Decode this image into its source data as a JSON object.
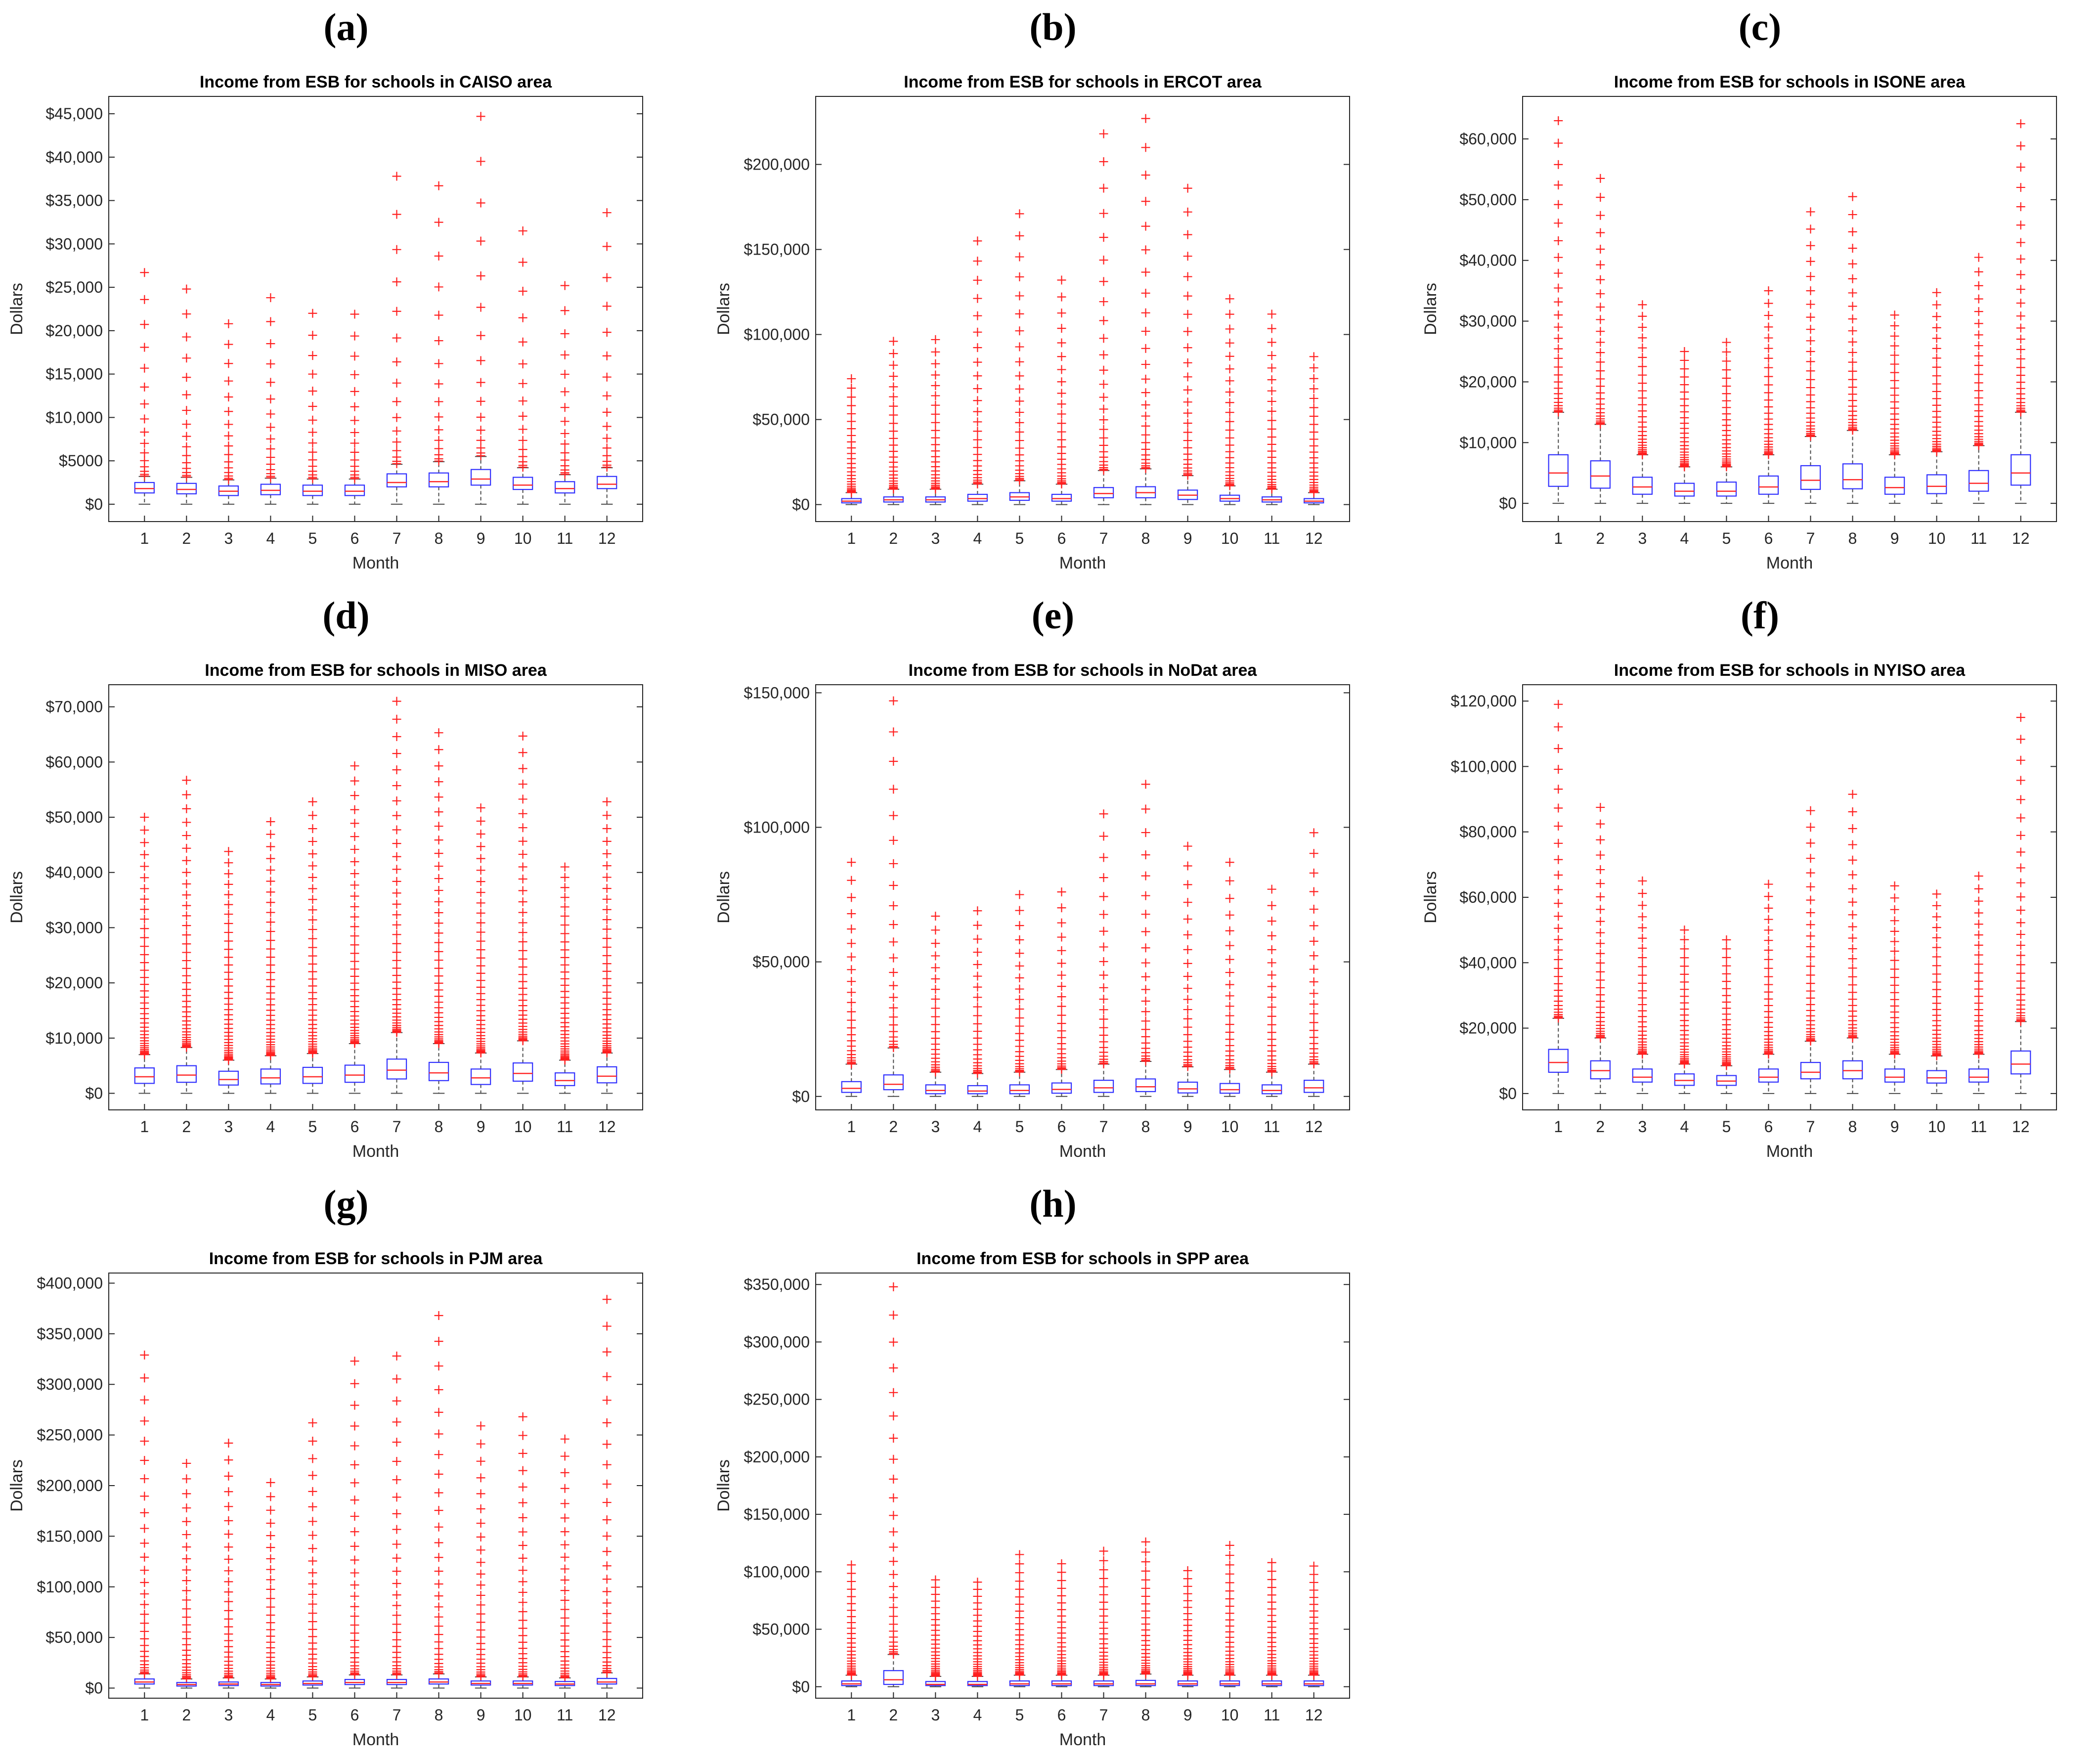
{
  "chart_data": [
    {
      "panel": "(a)",
      "type": "box",
      "title": "Income from ESB for schools in CAISO area",
      "xlabel": "Month",
      "ylabel": "Dollars",
      "categories": [
        "1",
        "2",
        "3",
        "4",
        "5",
        "6",
        "7",
        "8",
        "9",
        "10",
        "11",
        "12"
      ],
      "ylim": [
        -2000,
        47000
      ],
      "yticks": [
        0,
        5000,
        10000,
        15000,
        20000,
        25000,
        30000,
        35000,
        40000,
        45000
      ],
      "ytick_labels": [
        "$0",
        "$5000",
        "$10,000",
        "$15,000",
        "$20,000",
        "$25,000",
        "$30,000",
        "$35,000",
        "$40,000",
        "$45,000"
      ],
      "q1": [
        1300,
        1200,
        1000,
        1100,
        1000,
        1000,
        2000,
        2000,
        2200,
        1700,
        1300,
        1800
      ],
      "median": [
        1800,
        1700,
        1500,
        1600,
        1500,
        1500,
        2500,
        2600,
        2900,
        2200,
        1800,
        2300
      ],
      "q3": [
        2500,
        2400,
        2100,
        2300,
        2200,
        2200,
        3500,
        3600,
        4000,
        3100,
        2600,
        3200
      ],
      "whisker_low": [
        0,
        0,
        0,
        0,
        0,
        0,
        0,
        0,
        0,
        0,
        0,
        0
      ],
      "whisker_high": [
        3200,
        3100,
        2800,
        3000,
        2900,
        2900,
        4600,
        4900,
        5500,
        4200,
        3400,
        4200
      ],
      "outlier_max": [
        26700,
        24800,
        20800,
        23800,
        22000,
        21900,
        37800,
        36700,
        44700,
        31500,
        25200,
        33600
      ],
      "outlier_density": 16
    },
    {
      "panel": "(b)",
      "type": "box",
      "title": "Income from ESB for schools in ERCOT area",
      "xlabel": "Month",
      "ylabel": "Dollars",
      "categories": [
        "1",
        "2",
        "3",
        "4",
        "5",
        "6",
        "7",
        "8",
        "9",
        "10",
        "11",
        "12"
      ],
      "ylim": [
        -10000,
        240000
      ],
      "yticks": [
        0,
        50000,
        100000,
        150000,
        200000
      ],
      "ytick_labels": [
        "$0",
        "$50,000",
        "$100,000",
        "$150,000",
        "$200,000"
      ],
      "q1": [
        1000,
        1500,
        1500,
        2000,
        2500,
        2000,
        4000,
        4000,
        3000,
        2000,
        1500,
        1000
      ],
      "median": [
        2000,
        2800,
        2800,
        3500,
        4500,
        3500,
        6500,
        7000,
        5500,
        3500,
        2800,
        2000
      ],
      "q3": [
        3500,
        4500,
        4500,
        6000,
        7000,
        6000,
        10000,
        10500,
        8500,
        5500,
        4500,
        3500
      ],
      "whisker_low": [
        0,
        0,
        0,
        0,
        0,
        0,
        0,
        0,
        0,
        0,
        0,
        0
      ],
      "whisker_high": [
        7000,
        9000,
        9000,
        12000,
        14000,
        12000,
        20000,
        21000,
        17000,
        11000,
        9000,
        7000
      ],
      "outlier_max": [
        74000,
        96000,
        97000,
        155000,
        171000,
        132000,
        218000,
        227000,
        186000,
        121000,
        112000,
        87000
      ],
      "outlier_density": 26
    },
    {
      "panel": "(c)",
      "type": "box",
      "title": "Income from ESB for schools in ISONE area",
      "xlabel": "Month",
      "ylabel": "Dollars",
      "categories": [
        "1",
        "2",
        "3",
        "4",
        "5",
        "6",
        "7",
        "8",
        "9",
        "10",
        "11",
        "12"
      ],
      "ylim": [
        -3000,
        67000
      ],
      "yticks": [
        0,
        10000,
        20000,
        30000,
        40000,
        50000,
        60000
      ],
      "ytick_labels": [
        "$0",
        "$10,000",
        "$20,000",
        "$30,000",
        "$40,000",
        "$50,000",
        "$60,000"
      ],
      "q1": [
        2800,
        2500,
        1500,
        1200,
        1200,
        1500,
        2300,
        2400,
        1500,
        1600,
        2000,
        3000
      ],
      "median": [
        5000,
        4500,
        2700,
        2000,
        2000,
        2700,
        3800,
        3900,
        2600,
        2800,
        3300,
        5000
      ],
      "q3": [
        8000,
        7000,
        4300,
        3300,
        3500,
        4500,
        6200,
        6500,
        4300,
        4700,
        5400,
        8000
      ],
      "whisker_low": [
        0,
        0,
        0,
        0,
        0,
        0,
        0,
        0,
        0,
        0,
        0,
        0
      ],
      "whisker_high": [
        15000,
        13000,
        8000,
        6000,
        6000,
        8000,
        11000,
        12000,
        8000,
        8500,
        9500,
        15000
      ],
      "outlier_max": [
        63000,
        53500,
        32700,
        25000,
        26500,
        35000,
        48000,
        50500,
        31000,
        34700,
        40500,
        62500
      ],
      "outlier_density": 28
    },
    {
      "panel": "(d)",
      "type": "box",
      "title": "Income from ESB for schools in MISO area",
      "xlabel": "Month",
      "ylabel": "Dollars",
      "categories": [
        "1",
        "2",
        "3",
        "4",
        "5",
        "6",
        "7",
        "8",
        "9",
        "10",
        "11",
        "12"
      ],
      "ylim": [
        -3000,
        74000
      ],
      "yticks": [
        0,
        10000,
        20000,
        30000,
        40000,
        50000,
        60000,
        70000
      ],
      "ytick_labels": [
        "$0",
        "$10,000",
        "$20,000",
        "$30,000",
        "$40,000",
        "$50,000",
        "$60,000",
        "$70,000"
      ],
      "q1": [
        1800,
        2000,
        1500,
        1700,
        1800,
        2000,
        2600,
        2300,
        1600,
        2200,
        1400,
        1900
      ],
      "median": [
        3000,
        3300,
        2500,
        2800,
        3000,
        3300,
        4200,
        3700,
        2800,
        3600,
        2300,
        3100
      ],
      "q3": [
        4600,
        5000,
        4000,
        4400,
        4700,
        5100,
        6200,
        5600,
        4400,
        5500,
        3700,
        4800
      ],
      "whisker_low": [
        0,
        0,
        0,
        0,
        0,
        0,
        0,
        0,
        0,
        0,
        0,
        0
      ],
      "whisker_high": [
        7000,
        8300,
        6000,
        6800,
        7200,
        9000,
        11000,
        9000,
        7300,
        9500,
        6000,
        7300
      ],
      "outlier_max": [
        50000,
        56700,
        43800,
        49200,
        52800,
        59300,
        71000,
        65300,
        51700,
        64700,
        41000,
        52800
      ],
      "outlier_density": 40
    },
    {
      "panel": "(e)",
      "type": "box",
      "title": "Income from ESB for schools in NoDat area",
      "xlabel": "Month",
      "ylabel": "Dollars",
      "categories": [
        "1",
        "2",
        "3",
        "4",
        "5",
        "6",
        "7",
        "8",
        "9",
        "10",
        "11",
        "12"
      ],
      "ylim": [
        -5000,
        153000
      ],
      "yticks": [
        0,
        50000,
        100000,
        150000
      ],
      "ytick_labels": [
        "$0",
        "$50,000",
        "$100,000",
        "$150,000"
      ],
      "q1": [
        1500,
        2500,
        1000,
        1000,
        1000,
        1200,
        1500,
        1800,
        1300,
        1200,
        1000,
        1500
      ],
      "median": [
        3000,
        4500,
        2200,
        2000,
        2200,
        2600,
        3200,
        3600,
        2800,
        2500,
        2200,
        3200
      ],
      "q3": [
        5500,
        8000,
        4300,
        4000,
        4300,
        5000,
        6000,
        6500,
        5300,
        4800,
        4300,
        6000
      ],
      "whisker_low": [
        0,
        0,
        0,
        0,
        0,
        0,
        0,
        0,
        0,
        0,
        0,
        0
      ],
      "whisker_high": [
        12000,
        18000,
        9000,
        8500,
        9000,
        10000,
        12000,
        13000,
        11000,
        10000,
        9000,
        12000
      ],
      "outlier_max": [
        87000,
        147000,
        67000,
        69000,
        75000,
        76000,
        105000,
        116000,
        93000,
        87000,
        77000,
        98000
      ],
      "outlier_density": 24
    },
    {
      "panel": "(f)",
      "type": "box",
      "title": "Income from ESB for schools in NYISO area",
      "xlabel": "Month",
      "ylabel": "Dollars",
      "categories": [
        "1",
        "2",
        "3",
        "4",
        "5",
        "6",
        "7",
        "8",
        "9",
        "10",
        "11",
        "12"
      ],
      "ylim": [
        -5000,
        125000
      ],
      "yticks": [
        0,
        20000,
        40000,
        60000,
        80000,
        100000,
        120000
      ],
      "ytick_labels": [
        "$0",
        "$20,000",
        "$40,000",
        "$60,000",
        "$80,000",
        "$100,000",
        "$120,000"
      ],
      "q1": [
        6500,
        4500,
        3500,
        2500,
        2500,
        3500,
        4500,
        4500,
        3500,
        3200,
        3500,
        6000
      ],
      "median": [
        9500,
        7000,
        5000,
        4000,
        3800,
        5000,
        6500,
        7000,
        5000,
        4800,
        5000,
        9000
      ],
      "q3": [
        13500,
        10000,
        7500,
        6000,
        5500,
        7500,
        9500,
        10000,
        7500,
        7000,
        7500,
        13000
      ],
      "whisker_low": [
        0,
        0,
        0,
        0,
        0,
        0,
        0,
        0,
        0,
        0,
        0,
        0
      ],
      "whisker_high": [
        23000,
        17000,
        12000,
        9000,
        8500,
        12000,
        16000,
        17000,
        12000,
        11500,
        12000,
        22000
      ],
      "outlier_max": [
        119000,
        87500,
        65000,
        50000,
        47000,
        64000,
        86500,
        91500,
        63500,
        61000,
        66500,
        115000
      ],
      "outlier_density": 30
    },
    {
      "panel": "(g)",
      "type": "box",
      "title": "Income from ESB for schools in PJM area",
      "xlabel": "Month",
      "ylabel": "Dollars",
      "categories": [
        "1",
        "2",
        "3",
        "4",
        "5",
        "6",
        "7",
        "8",
        "9",
        "10",
        "11",
        "12"
      ],
      "ylim": [
        -10000,
        410000
      ],
      "yticks": [
        0,
        50000,
        100000,
        150000,
        200000,
        250000,
        300000,
        350000,
        400000
      ],
      "ytick_labels": [
        "$0",
        "$50,000",
        "$100,000",
        "$150,000",
        "$200,000",
        "$250,000",
        "$300,000",
        "$350,000",
        "$400,000"
      ],
      "q1": [
        4000,
        2000,
        2500,
        2000,
        3000,
        3500,
        3500,
        4000,
        3000,
        3000,
        2500,
        4000
      ],
      "median": [
        6000,
        3500,
        4000,
        3500,
        4500,
        5500,
        5500,
        6000,
        4500,
        4500,
        4000,
        6000
      ],
      "q3": [
        9000,
        5500,
        6000,
        5500,
        7000,
        8500,
        8500,
        9000,
        7000,
        7000,
        6500,
        9500
      ],
      "whisker_low": [
        0,
        0,
        0,
        0,
        0,
        0,
        0,
        0,
        0,
        0,
        0,
        0
      ],
      "whisker_high": [
        14000,
        9000,
        10000,
        9000,
        11000,
        13000,
        13000,
        14000,
        11000,
        11000,
        10000,
        15000
      ],
      "outlier_max": [
        329000,
        222000,
        242000,
        203000,
        262000,
        323000,
        328000,
        368000,
        259000,
        268000,
        246000,
        384000
      ],
      "outlier_density": 30
    },
    {
      "panel": "(h)",
      "type": "box",
      "title": "Income from ESB for schools in SPP area",
      "xlabel": "Month",
      "ylabel": "Dollars",
      "categories": [
        "1",
        "2",
        "3",
        "4",
        "5",
        "6",
        "7",
        "8",
        "9",
        "10",
        "11",
        "12"
      ],
      "ylim": [
        -10000,
        360000
      ],
      "yticks": [
        0,
        50000,
        100000,
        150000,
        200000,
        250000,
        300000,
        350000
      ],
      "ytick_labels": [
        "$0",
        "$50,000",
        "$100,000",
        "$150,000",
        "$200,000",
        "$250,000",
        "$300,000",
        "$350,000"
      ],
      "q1": [
        1000,
        2000,
        1000,
        1000,
        1000,
        1000,
        1000,
        1000,
        1000,
        1000,
        1000,
        1000
      ],
      "median": [
        2500,
        6000,
        2000,
        2000,
        2500,
        2500,
        2500,
        2500,
        2500,
        2500,
        2500,
        2500
      ],
      "q3": [
        5000,
        14000,
        4500,
        4500,
        5000,
        5000,
        5000,
        5500,
        5000,
        5000,
        5000,
        5000
      ],
      "whisker_low": [
        0,
        0,
        0,
        0,
        0,
        0,
        0,
        0,
        0,
        0,
        0,
        0
      ],
      "whisker_high": [
        10000,
        28000,
        9000,
        9000,
        10000,
        10000,
        10000,
        11000,
        10000,
        10000,
        10000,
        10000
      ],
      "outlier_max": [
        106000,
        348000,
        93000,
        91000,
        115000,
        107000,
        118000,
        126000,
        101000,
        123000,
        108000,
        105000
      ],
      "outlier_density": 28
    }
  ],
  "colors": {
    "box": "#3232ff",
    "median": "#ff2a2a",
    "outlier": "#ff1f1f",
    "whisker": "#4a4a4a",
    "axis": "#262626"
  }
}
